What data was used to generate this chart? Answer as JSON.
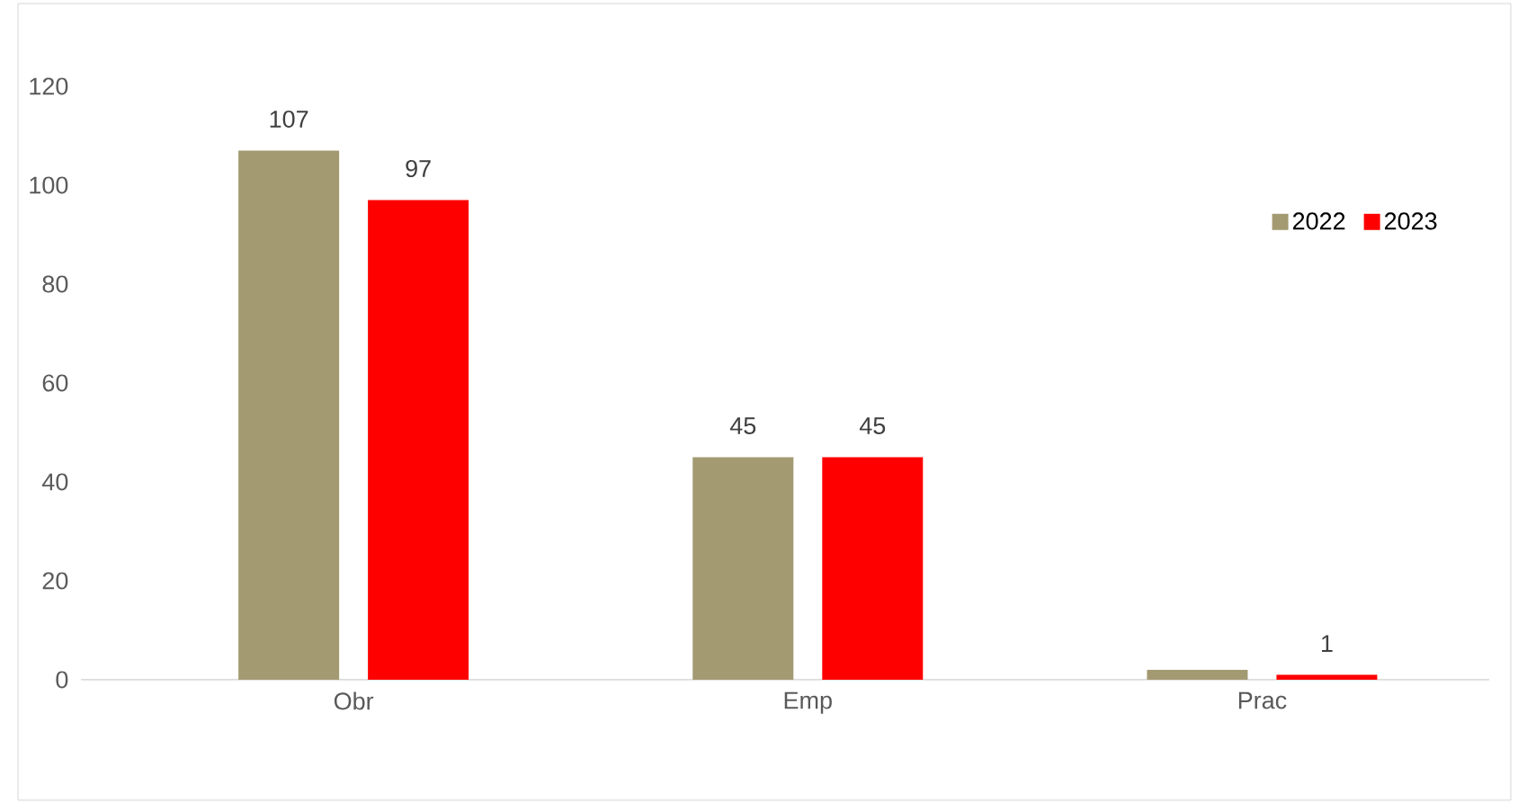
{
  "chart_data": {
    "type": "bar",
    "categories": [
      "Obr",
      "Emp",
      "Prac"
    ],
    "series": [
      {
        "name": "2022",
        "color": "#a39a72",
        "values": [
          107,
          45,
          2
        ],
        "value_labels": [
          "107",
          "45",
          null
        ]
      },
      {
        "name": "2023",
        "color": "#ff0000",
        "values": [
          97,
          45,
          1
        ],
        "value_labels": [
          "97",
          "45",
          "1"
        ]
      }
    ],
    "ylim": [
      0,
      120
    ],
    "yticks": [
      0,
      20,
      40,
      60,
      80,
      100,
      120
    ],
    "grid": false,
    "legend": "top right"
  }
}
